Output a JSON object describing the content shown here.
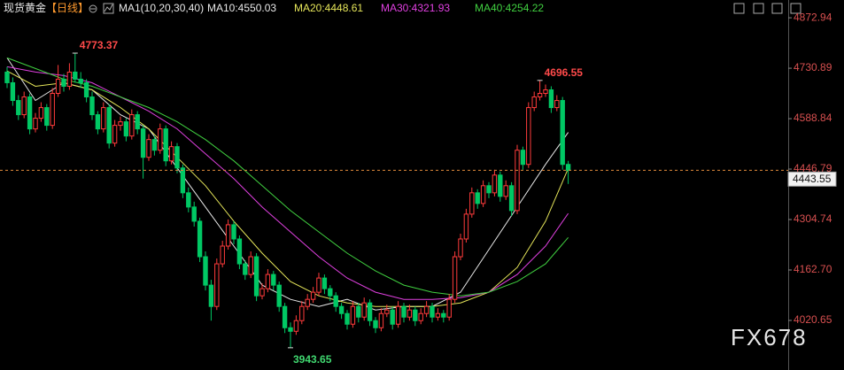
{
  "chart_data": {
    "type": "candlestick",
    "symbol": "现货黄金",
    "period": "【日线】",
    "indicator_label": "MA1(10,20,30,40)",
    "watermark": "FX678",
    "up_color": "#ff3b3b",
    "down_color": "#00c864",
    "ylim": [
      3881,
      4923
    ],
    "yticks": [
      4872.94,
      4730.89,
      4588.84,
      4446.79,
      4304.74,
      {
        "value": 4162.7,
        "label": "4162.70"
      },
      4020.65
    ],
    "candles": [
      [
        4720,
        4735,
        4675,
        4690
      ],
      [
        4690,
        4705,
        4625,
        4640
      ],
      [
        4640,
        4655,
        4585,
        4600
      ],
      [
        4600,
        4665,
        4590,
        4650
      ],
      [
        4650,
        4660,
        4545,
        4560
      ],
      [
        4560,
        4605,
        4550,
        4590
      ],
      [
        4590,
        4635,
        4580,
        4620
      ],
      [
        4620,
        4630,
        4555,
        4570
      ],
      [
        4570,
        4675,
        4560,
        4660
      ],
      [
        4660,
        4740,
        4650,
        4700
      ],
      [
        4700,
        4715,
        4665,
        4680
      ],
      [
        4680,
        4745,
        4670,
        4720
      ],
      [
        4720,
        4773.37,
        4690,
        4700
      ],
      [
        4700,
        4720,
        4675,
        4690
      ],
      [
        4690,
        4700,
        4635,
        4650
      ],
      [
        4650,
        4665,
        4585,
        4600
      ],
      [
        4600,
        4610,
        4545,
        4560
      ],
      [
        4560,
        4635,
        4550,
        4620
      ],
      [
        4620,
        4630,
        4505,
        4520
      ],
      [
        4520,
        4585,
        4510,
        4570
      ],
      [
        4570,
        4595,
        4555,
        4580
      ],
      [
        4580,
        4590,
        4525,
        4540
      ],
      [
        4540,
        4615,
        4530,
        4600
      ],
      [
        4600,
        4610,
        4545,
        4560
      ],
      [
        4560,
        4570,
        4420,
        4480
      ],
      [
        4480,
        4545,
        4470,
        4530
      ],
      [
        4530,
        4540,
        4485,
        4500
      ],
      [
        4500,
        4575,
        4490,
        4560
      ],
      [
        4560,
        4570,
        4455,
        4470
      ],
      [
        4470,
        4525,
        4460,
        4510
      ],
      [
        4510,
        4520,
        4435,
        4450
      ],
      [
        4450,
        4460,
        4365,
        4380
      ],
      [
        4380,
        4395,
        4325,
        4340
      ],
      [
        4340,
        4355,
        4285,
        4300
      ],
      [
        4300,
        4310,
        4185,
        4200
      ],
      [
        4200,
        4215,
        4105,
        4120
      ],
      [
        4120,
        4135,
        4020,
        4060
      ],
      [
        4060,
        4195,
        4050,
        4180
      ],
      [
        4180,
        4245,
        4170,
        4230
      ],
      [
        4230,
        4305,
        4220,
        4290
      ],
      [
        4290,
        4300,
        4235,
        4250
      ],
      [
        4250,
        4260,
        4165,
        4180
      ],
      [
        4180,
        4190,
        4135,
        4150
      ],
      [
        4150,
        4215,
        4140,
        4200
      ],
      [
        4200,
        4210,
        4075,
        4090
      ],
      [
        4090,
        4125,
        4080,
        4110
      ],
      [
        4110,
        4165,
        4100,
        4150
      ],
      [
        4150,
        4160,
        4105,
        4120
      ],
      [
        4120,
        4130,
        4045,
        4060
      ],
      [
        4060,
        4070,
        3985,
        4000
      ],
      [
        4000,
        4015,
        3943.65,
        3990
      ],
      [
        3990,
        4035,
        3980,
        4020
      ],
      [
        4020,
        4075,
        4010,
        4060
      ],
      [
        4060,
        4095,
        4050,
        4080
      ],
      [
        4080,
        4115,
        4070,
        4100
      ],
      [
        4100,
        4155,
        4090,
        4140
      ],
      [
        4140,
        4150,
        4095,
        4110
      ],
      [
        4110,
        4120,
        4075,
        4090
      ],
      [
        4090,
        4100,
        4045,
        4060
      ],
      [
        4060,
        4070,
        4025,
        4040
      ],
      [
        4040,
        4050,
        3995,
        4010
      ],
      [
        4010,
        4075,
        4000,
        4060
      ],
      [
        4060,
        4070,
        4015,
        4030
      ],
      [
        4030,
        4085,
        4020,
        4070
      ],
      [
        4070,
        4080,
        4005,
        4020
      ],
      [
        4020,
        4030,
        3985,
        4000
      ],
      [
        4000,
        4055,
        3990,
        4040
      ],
      [
        4040,
        4065,
        4030,
        4050
      ],
      [
        4050,
        4060,
        3995,
        4010
      ],
      [
        4010,
        4075,
        4000,
        4060
      ],
      [
        4060,
        4070,
        4015,
        4030
      ],
      [
        4030,
        4065,
        4020,
        4050
      ],
      [
        4050,
        4060,
        4005,
        4020
      ],
      [
        4020,
        4055,
        4010,
        4040
      ],
      [
        4040,
        4075,
        4030,
        4060
      ],
      [
        4060,
        4070,
        4015,
        4030
      ],
      [
        4030,
        4055,
        4020,
        4040
      ],
      [
        4040,
        4050,
        4015,
        4030
      ],
      [
        4030,
        4095,
        4020,
        4080
      ],
      [
        4080,
        4215,
        4070,
        4200
      ],
      [
        4200,
        4265,
        4190,
        4250
      ],
      [
        4250,
        4335,
        4240,
        4320
      ],
      [
        4320,
        4395,
        4310,
        4380
      ],
      [
        4380,
        4390,
        4335,
        4350
      ],
      [
        4350,
        4415,
        4340,
        4400
      ],
      [
        4400,
        4410,
        4365,
        4380
      ],
      [
        4380,
        4445,
        4370,
        4430
      ],
      [
        4430,
        4440,
        4355,
        4370
      ],
      [
        4370,
        4415,
        4360,
        4400
      ],
      [
        4400,
        4410,
        4315,
        4330
      ],
      [
        4330,
        4515,
        4320,
        4500
      ],
      [
        4500,
        4510,
        4445,
        4460
      ],
      [
        4460,
        4635,
        4450,
        4620
      ],
      [
        4620,
        4665,
        4610,
        4650
      ],
      [
        4650,
        4696.55,
        4640,
        4660
      ],
      [
        4660,
        4685,
        4650,
        4670
      ],
      [
        4670,
        4680,
        4605,
        4620
      ],
      [
        4620,
        4655,
        4610,
        4640
      ],
      [
        4640,
        4650,
        4445,
        4460
      ],
      [
        4460,
        4470,
        4405,
        4443.55
      ]
    ],
    "x": [
      0,
      5,
      10,
      15,
      20,
      25,
      30,
      35,
      40,
      45,
      50,
      55,
      60,
      65,
      70,
      75,
      80,
      85,
      90,
      95,
      99
    ],
    "series": [
      {
        "name": "MA10:4550.03",
        "color": "#e8e8e8",
        "values": [
          4760,
          4640,
          4690,
          4670,
          4600,
          4560,
          4450,
          4340,
          4230,
          4120,
          4080,
          4060,
          4080,
          4050,
          4060,
          4060,
          4100,
          4220,
          4340,
          4460,
          4550.03
        ]
      },
      {
        "name": "MA20:4448.61",
        "color": "#e6e65a",
        "values": [
          4723,
          4680,
          4690,
          4670,
          4620,
          4560,
          4480,
          4400,
          4300,
          4210,
          4130,
          4090,
          4070,
          4060,
          4060,
          4060,
          4070,
          4100,
          4170,
          4300,
          4448.61
        ]
      },
      {
        "name": "MA30:4321.93",
        "color": "#e040e0",
        "values": [
          4735,
          4720,
          4710,
          4690,
          4650,
          4610,
          4560,
          4490,
          4420,
          4340,
          4270,
          4200,
          4140,
          4100,
          4080,
          4080,
          4085,
          4100,
          4150,
          4230,
          4321.93
        ]
      },
      {
        "name": "MA40:4254.22",
        "color": "#40d040",
        "values": [
          4760,
          4730,
          4700,
          4680,
          4650,
          4620,
          4580,
          4530,
          4470,
          4400,
          4330,
          4270,
          4210,
          4160,
          4120,
          4100,
          4090,
          4100,
          4130,
          4180,
          4254.22
        ]
      }
    ]
  }
}
